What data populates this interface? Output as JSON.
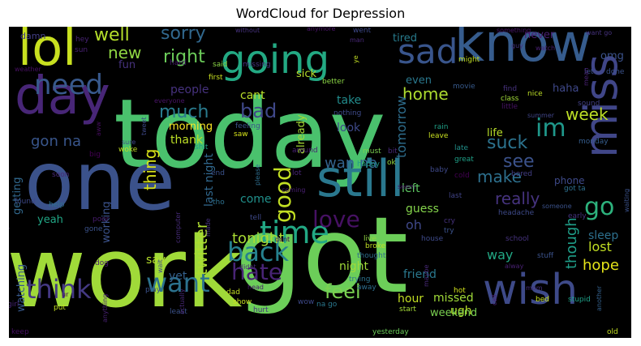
{
  "title": "WordCloud for Depression",
  "palette": [
    "#440154",
    "#46327e",
    "#365c8d",
    "#277f8e",
    "#1fa187",
    "#4ac16d",
    "#a0da39",
    "#fde725"
  ],
  "words": [
    {
      "text": "today",
      "size": 118,
      "color": "#4ac16d"
    },
    {
      "text": "work",
      "size": 120,
      "color": "#a0da39"
    },
    {
      "text": "got",
      "size": 130,
      "color": "#6cce59"
    },
    {
      "text": "one",
      "size": 100,
      "color": "#3b528b"
    },
    {
      "text": "know",
      "size": 64,
      "color": "#365c8d"
    },
    {
      "text": "day",
      "size": 64,
      "color": "#482677"
    },
    {
      "text": "lol",
      "size": 62,
      "color": "#c8e020"
    },
    {
      "text": "still",
      "size": 62,
      "color": "#2a788e"
    },
    {
      "text": "going",
      "size": 48,
      "color": "#23a983"
    },
    {
      "text": "miss",
      "size": 56,
      "color": "#404688"
    },
    {
      "text": "wish",
      "size": 52,
      "color": "#3e4a89"
    },
    {
      "text": "sad",
      "size": 42,
      "color": "#39558c"
    },
    {
      "text": "need",
      "size": 34,
      "color": "#38598c"
    },
    {
      "text": "time",
      "size": 38,
      "color": "#22a884"
    },
    {
      "text": "think",
      "size": 32,
      "color": "#443983"
    },
    {
      "text": "want",
      "size": 32,
      "color": "#2c728e"
    },
    {
      "text": "back",
      "size": 32,
      "color": "#26818e"
    },
    {
      "text": "hate",
      "size": 28,
      "color": "#482475"
    },
    {
      "text": "love",
      "size": 28,
      "color": "#471164"
    },
    {
      "text": "good",
      "size": 28,
      "color": "#c2df23"
    },
    {
      "text": "go",
      "size": 30,
      "color": "#2db27d"
    },
    {
      "text": "im",
      "size": 30,
      "color": "#1f988b"
    },
    {
      "text": "feel",
      "size": 24,
      "color": "#7ad151"
    },
    {
      "text": "well",
      "size": 22,
      "color": "#b5de2b"
    },
    {
      "text": "sorry",
      "size": 22,
      "color": "#31688e"
    },
    {
      "text": "new",
      "size": 20,
      "color": "#90d743"
    },
    {
      "text": "right",
      "size": 22,
      "color": "#6ccd5a"
    },
    {
      "text": "much",
      "size": 22,
      "color": "#297b8e"
    },
    {
      "text": "bad",
      "size": 24,
      "color": "#3f4889"
    },
    {
      "text": "make",
      "size": 20,
      "color": "#2d708e"
    },
    {
      "text": "suck",
      "size": 22,
      "color": "#2c738e"
    },
    {
      "text": "see",
      "size": 22,
      "color": "#3b528b"
    },
    {
      "text": "week",
      "size": 20,
      "color": "#bddf26"
    },
    {
      "text": "home",
      "size": 20,
      "color": "#addc30"
    },
    {
      "text": "really",
      "size": 20,
      "color": "#46337f"
    },
    {
      "text": "tonight",
      "size": 18,
      "color": "#a8db34"
    },
    {
      "text": "thing",
      "size": 20,
      "color": "#d8e219"
    },
    {
      "text": "twitter",
      "size": 20,
      "color": "#addc30"
    },
    {
      "text": "gon na",
      "size": 18,
      "color": "#39568c"
    },
    {
      "text": "wan na",
      "size": 18,
      "color": "#33638d"
    },
    {
      "text": "last night",
      "size": 14,
      "color": "#31688e"
    },
    {
      "text": "tomorrow",
      "size": 16,
      "color": "#2e6e8e"
    },
    {
      "text": "though",
      "size": 18,
      "color": "#1f9e89"
    },
    {
      "text": "hope",
      "size": 18,
      "color": "#e5e419"
    },
    {
      "text": "lost",
      "size": 16,
      "color": "#c2df23"
    },
    {
      "text": "sleep",
      "size": 14,
      "color": "#2d708e"
    },
    {
      "text": "way",
      "size": 16,
      "color": "#22a884"
    },
    {
      "text": "say",
      "size": 14,
      "color": "#b5de2b"
    },
    {
      "text": "yet",
      "size": 14,
      "color": "#34618d"
    },
    {
      "text": "night",
      "size": 14,
      "color": "#a0da39"
    },
    {
      "text": "friend",
      "size": 14,
      "color": "#2a788e"
    },
    {
      "text": "hour",
      "size": 14,
      "color": "#c2df23"
    },
    {
      "text": "missed",
      "size": 14,
      "color": "#a0da39"
    },
    {
      "text": "ugh",
      "size": 14,
      "color": "#b8de29"
    },
    {
      "text": "weekend",
      "size": 13,
      "color": "#7ad151"
    },
    {
      "text": "watching",
      "size": 13,
      "color": "#38598c"
    },
    {
      "text": "left",
      "size": 14,
      "color": "#5ec962"
    },
    {
      "text": "guess",
      "size": 14,
      "color": "#84d44b"
    },
    {
      "text": "oh",
      "size": 16,
      "color": "#3f4889"
    },
    {
      "text": "come",
      "size": 14,
      "color": "#21918c"
    },
    {
      "text": "people",
      "size": 14,
      "color": "#46327e"
    },
    {
      "text": "morning",
      "size": 13,
      "color": "#fde725"
    },
    {
      "text": "thank",
      "size": 14,
      "color": "#bddf26"
    },
    {
      "text": "cant",
      "size": 14,
      "color": "#b8de29"
    },
    {
      "text": "take",
      "size": 14,
      "color": "#228c8d"
    },
    {
      "text": "look",
      "size": 14,
      "color": "#3e4989"
    },
    {
      "text": "already",
      "size": 13,
      "color": "#a5db36"
    },
    {
      "text": "getting",
      "size": 13,
      "color": "#31688e"
    },
    {
      "text": "yeah",
      "size": 13,
      "color": "#21a685"
    },
    {
      "text": "working",
      "size": 13,
      "color": "#3b528b"
    },
    {
      "text": "fun",
      "size": 13,
      "color": "#46327e"
    },
    {
      "text": "sick",
      "size": 13,
      "color": "#b5de2b"
    },
    {
      "text": "haha",
      "size": 13,
      "color": "#3f4889"
    },
    {
      "text": "life",
      "size": 13,
      "color": "#b8de29"
    },
    {
      "text": "even",
      "size": 13,
      "color": "#2a788e"
    },
    {
      "text": "tired",
      "size": 13,
      "color": "#287c8e"
    },
    {
      "text": "never",
      "size": 13,
      "color": "#482071"
    },
    {
      "text": "omg",
      "size": 13,
      "color": "#3b528b"
    },
    {
      "text": "phone",
      "size": 12,
      "color": "#3e4a89"
    },
    {
      "text": "damn",
      "size": 11,
      "color": "#433e85"
    },
    {
      "text": "hey",
      "size": 9,
      "color": "#482475"
    },
    {
      "text": "sun",
      "size": 9,
      "color": "#482173"
    },
    {
      "text": "hard",
      "size": 9,
      "color": "#481b6d"
    },
    {
      "text": "said",
      "size": 9,
      "color": "#8bd646"
    },
    {
      "text": "first",
      "size": 9,
      "color": "#c8e020"
    },
    {
      "text": "better",
      "size": 9,
      "color": "#8bd646"
    },
    {
      "text": "missing",
      "size": 9,
      "color": "#46337f"
    },
    {
      "text": "without",
      "size": 8,
      "color": "#46327e"
    },
    {
      "text": "went",
      "size": 9,
      "color": "#3e4989"
    },
    {
      "text": "man",
      "size": 8,
      "color": "#482878"
    },
    {
      "text": "ye",
      "size": 8,
      "color": "#c2df23"
    },
    {
      "text": "late",
      "size": 9,
      "color": "#21918c"
    },
    {
      "text": "great",
      "size": 9,
      "color": "#1fa188"
    },
    {
      "text": "might",
      "size": 9,
      "color": "#c2df23"
    },
    {
      "text": "guy",
      "size": 8,
      "color": "#46327e"
    },
    {
      "text": "watch",
      "size": 8,
      "color": "#482071"
    },
    {
      "text": "let",
      "size": 9,
      "color": "#3b528b"
    },
    {
      "text": "done",
      "size": 9,
      "color": "#3b528b"
    },
    {
      "text": "movie",
      "size": 9,
      "color": "#375a8c"
    },
    {
      "text": "find",
      "size": 9,
      "color": "#46327e"
    },
    {
      "text": "class",
      "size": 9,
      "color": "#a0da39"
    },
    {
      "text": "nice",
      "size": 9,
      "color": "#bddf26"
    },
    {
      "text": "little",
      "size": 9,
      "color": "#471365"
    },
    {
      "text": "sound",
      "size": 9,
      "color": "#424086"
    },
    {
      "text": "summer",
      "size": 8,
      "color": "#404688"
    },
    {
      "text": "everyone",
      "size": 8,
      "color": "#481467"
    },
    {
      "text": "feeling",
      "size": 9,
      "color": "#3b528b"
    },
    {
      "text": "nothing",
      "size": 9,
      "color": "#3e4a89"
    },
    {
      "text": "rain",
      "size": 9,
      "color": "#1fa187"
    },
    {
      "text": "leave",
      "size": 9,
      "color": "#c8e020"
    },
    {
      "text": "saw",
      "size": 9,
      "color": "#d5e21a"
    },
    {
      "text": "tweet",
      "size": 8,
      "color": "#3e4989"
    },
    {
      "text": "sure",
      "size": 8,
      "color": "#3f4788"
    },
    {
      "text": "woke",
      "size": 9,
      "color": "#c2df23"
    },
    {
      "text": "aww",
      "size": 8,
      "color": "#470e61"
    },
    {
      "text": "big",
      "size": 9,
      "color": "#440154"
    },
    {
      "text": "around",
      "size": 9,
      "color": "#482173"
    },
    {
      "text": "must",
      "size": 9,
      "color": "#7ad151"
    },
    {
      "text": "bit",
      "size": 9,
      "color": "#482979"
    },
    {
      "text": "ok",
      "size": 9,
      "color": "#93d741"
    },
    {
      "text": "happy",
      "size": 9,
      "color": "#1e9c89"
    },
    {
      "text": "cold",
      "size": 9,
      "color": "#440154"
    },
    {
      "text": "bored",
      "size": 9,
      "color": "#433e85"
    },
    {
      "text": "monday",
      "size": 9,
      "color": "#365d8d"
    },
    {
      "text": "shit",
      "size": 9,
      "color": "#1fa188"
    },
    {
      "text": "end",
      "size": 9,
      "color": "#3b528b"
    },
    {
      "text": "please",
      "size": 8,
      "color": "#2e6e8e"
    },
    {
      "text": "lot",
      "size": 9,
      "color": "#482475"
    },
    {
      "text": "coming",
      "size": 8,
      "color": "#481f70"
    },
    {
      "text": "baby",
      "size": 9,
      "color": "#3e4989"
    },
    {
      "text": "seem",
      "size": 8,
      "color": "#481769"
    },
    {
      "text": "got ta",
      "size": 9,
      "color": "#2d708e"
    },
    {
      "text": "early",
      "size": 9,
      "color": "#46337f"
    },
    {
      "text": "soon",
      "size": 9,
      "color": "#482878"
    },
    {
      "text": "help",
      "size": 9,
      "color": "#2d708e"
    },
    {
      "text": "tho",
      "size": 9,
      "color": "#2d708e"
    },
    {
      "text": "tell",
      "size": 9,
      "color": "#3e4989"
    },
    {
      "text": "headache",
      "size": 9,
      "color": "#3e4a89"
    },
    {
      "text": "someone",
      "size": 8,
      "color": "#3b528b"
    },
    {
      "text": "cry",
      "size": 9,
      "color": "#46327e"
    },
    {
      "text": "last",
      "size": 9,
      "color": "#414487"
    },
    {
      "text": "try",
      "size": 9,
      "color": "#3b528b"
    },
    {
      "text": "found",
      "size": 9,
      "color": "#3e4989"
    },
    {
      "text": "poor",
      "size": 9,
      "color": "#481d6f"
    },
    {
      "text": "gone",
      "size": 9,
      "color": "#3b528b"
    },
    {
      "text": "computer",
      "size": 8,
      "color": "#472c7a"
    },
    {
      "text": "dont",
      "size": 8,
      "color": "#440154"
    },
    {
      "text": "live",
      "size": 9,
      "color": "#93d741"
    },
    {
      "text": "house",
      "size": 9,
      "color": "#3e4a89"
    },
    {
      "text": "broke",
      "size": 9,
      "color": "#c2df23"
    },
    {
      "text": "thought",
      "size": 9,
      "color": "#2e6e8e"
    },
    {
      "text": "school",
      "size": 9,
      "color": "#46337f"
    },
    {
      "text": "stuff",
      "size": 9,
      "color": "#3b528b"
    },
    {
      "text": "alway",
      "size": 8,
      "color": "#482173"
    },
    {
      "text": "trying",
      "size": 9,
      "color": "#2c738e"
    },
    {
      "text": "hot",
      "size": 9,
      "color": "#d2e21b"
    },
    {
      "text": "mom",
      "size": 8,
      "color": "#472f7d"
    },
    {
      "text": "bed",
      "size": 9,
      "color": "#c8e020"
    },
    {
      "text": "stupid",
      "size": 9,
      "color": "#1fa088"
    },
    {
      "text": "another",
      "size": 8,
      "color": "#34618d"
    },
    {
      "text": "old",
      "size": 9,
      "color": "#c2df23"
    },
    {
      "text": "start",
      "size": 9,
      "color": "#a5db36"
    },
    {
      "text": "away",
      "size": 9,
      "color": "#2e6e8e"
    },
    {
      "text": "yesterday",
      "size": 9,
      "color": "#6ccd5a"
    },
    {
      "text": "na go",
      "size": 9,
      "color": "#2a788e"
    },
    {
      "text": "wow",
      "size": 9,
      "color": "#3e4989"
    },
    {
      "text": "dad",
      "size": 9,
      "color": "#c2df23"
    },
    {
      "text": "show",
      "size": 9,
      "color": "#c8e020"
    },
    {
      "text": "hurt",
      "size": 9,
      "color": "#46327e"
    },
    {
      "text": "least",
      "size": 9,
      "color": "#3b528b"
    },
    {
      "text": "actually",
      "size": 8,
      "color": "#482878"
    },
    {
      "text": "anything",
      "size": 8,
      "color": "#482173"
    },
    {
      "text": "put",
      "size": 9,
      "color": "#c2df23"
    },
    {
      "text": "play",
      "size": 9,
      "color": "#3b528b"
    },
    {
      "text": "keep",
      "size": 9,
      "color": "#471063"
    },
    {
      "text": "girl",
      "size": 9,
      "color": "#482475"
    },
    {
      "text": "dog",
      "size": 9,
      "color": "#481b6d"
    },
    {
      "text": "wait",
      "size": 8,
      "color": "#3e4989"
    },
    {
      "text": "didnt",
      "size": 8,
      "color": "#482878"
    },
    {
      "text": "head",
      "size": 8,
      "color": "#481a6c"
    },
    {
      "text": "made",
      "size": 8,
      "color": "#46327e"
    },
    {
      "text": "maybe",
      "size": 8,
      "color": "#482979"
    },
    {
      "text": "call",
      "size": 8,
      "color": "#481c6e"
    },
    {
      "text": "ur",
      "size": 8,
      "color": "#440154"
    },
    {
      "text": "something",
      "size": 8,
      "color": "#481668"
    },
    {
      "text": "anymore",
      "size": 8,
      "color": "#481467"
    },
    {
      "text": "want go",
      "size": 8,
      "color": "#46327e"
    },
    {
      "text": "waiting",
      "size": 8,
      "color": "#3b528b"
    },
    {
      "text": "mean",
      "size": 8,
      "color": "#482173"
    },
    {
      "text": "year",
      "size": 8,
      "color": "#482475"
    },
    {
      "text": "weather",
      "size": 8,
      "color": "#471063"
    }
  ]
}
